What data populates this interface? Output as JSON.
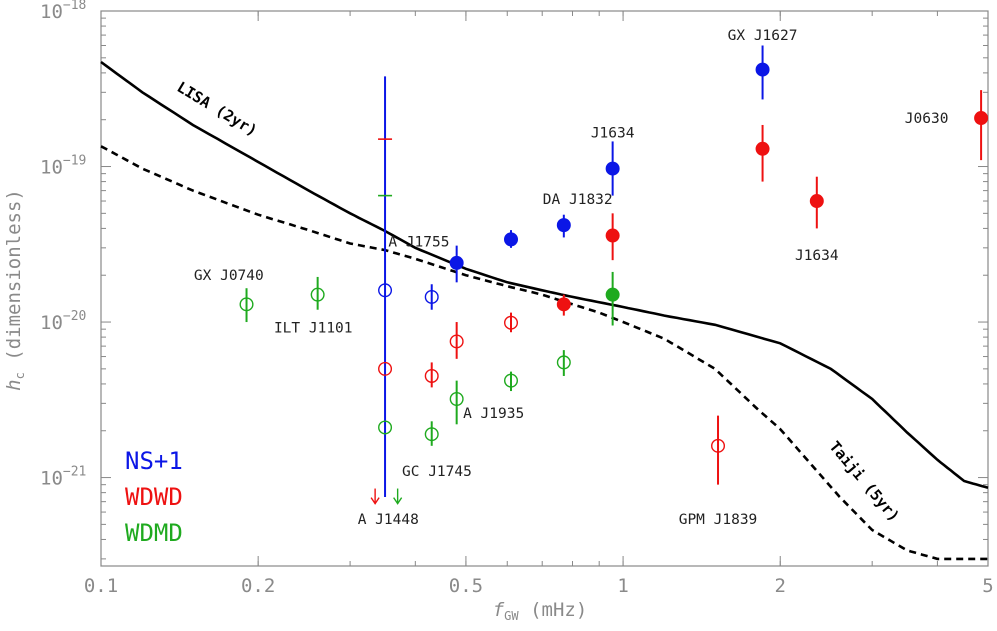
{
  "chart_data": {
    "type": "scatter",
    "xlabel": {
      "main": "f",
      "sub": "GW",
      "unit": " (mHz)"
    },
    "ylabel": {
      "main": "h",
      "sub": "c",
      "unit": " (dimensionless)"
    },
    "xscale": "log",
    "yscale": "log",
    "xlim": [
      0.1,
      5
    ],
    "ylim": [
      2.7e-22,
      1e-18
    ],
    "x_ticks": [
      {
        "value": 0.1,
        "label": "0.1"
      },
      {
        "value": 0.2,
        "label": "0.2"
      },
      {
        "value": 0.5,
        "label": "0.5"
      },
      {
        "value": 1,
        "label": "1"
      },
      {
        "value": 2,
        "label": "2"
      },
      {
        "value": 5,
        "label": "5"
      }
    ],
    "y_ticks": [
      {
        "value": 1e-21,
        "mant": "10",
        "exp": "−21"
      },
      {
        "value": 1e-20,
        "mant": "10",
        "exp": "−20"
      },
      {
        "value": 1e-19,
        "mant": "10",
        "exp": "−19"
      },
      {
        "value": 1e-18,
        "mant": "10",
        "exp": "−18"
      }
    ],
    "grid": false,
    "colors": {
      "NS+1": "#0b16e6",
      "WDWD": "#ee1111",
      "WDMD": "#1faa1f"
    },
    "curves": [
      {
        "name": "LISA (2yr)",
        "style": "solid",
        "points": [
          [
            0.1,
            4.7e-19
          ],
          [
            0.12,
            3e-19
          ],
          [
            0.15,
            1.85e-19
          ],
          [
            0.2,
            1.07e-19
          ],
          [
            0.25,
            7e-20
          ],
          [
            0.3,
            5e-20
          ],
          [
            0.35,
            3.85e-20
          ],
          [
            0.4,
            3e-20
          ],
          [
            0.5,
            2.2e-20
          ],
          [
            0.6,
            1.8e-20
          ],
          [
            0.7,
            1.6e-20
          ],
          [
            0.8,
            1.45e-20
          ],
          [
            1.0,
            1.25e-20
          ],
          [
            1.2,
            1.1e-20
          ],
          [
            1.5,
            9.6e-21
          ],
          [
            2.0,
            7.3e-21
          ],
          [
            2.5,
            5e-21
          ],
          [
            3.0,
            3.2e-21
          ],
          [
            3.5,
            1.95e-21
          ],
          [
            4.0,
            1.3e-21
          ],
          [
            4.5,
            9.5e-22
          ],
          [
            5.0,
            8.6e-22
          ]
        ]
      },
      {
        "name": "Taiji (5yr)",
        "style": "dashed",
        "points": [
          [
            0.1,
            1.35e-19
          ],
          [
            0.12,
            9.7e-20
          ],
          [
            0.15,
            7e-20
          ],
          [
            0.2,
            4.9e-20
          ],
          [
            0.25,
            3.9e-20
          ],
          [
            0.3,
            3.2e-20
          ],
          [
            0.35,
            2.9e-20
          ],
          [
            0.4,
            2.55e-20
          ],
          [
            0.5,
            2e-20
          ],
          [
            0.6,
            1.7e-20
          ],
          [
            0.7,
            1.5e-20
          ],
          [
            0.8,
            1.3e-20
          ],
          [
            0.9,
            1.15e-20
          ],
          [
            1.0,
            1e-20
          ],
          [
            1.2,
            7.8e-21
          ],
          [
            1.5,
            5e-21
          ],
          [
            1.8,
            2.8e-21
          ],
          [
            2.0,
            2.05e-21
          ],
          [
            2.3,
            1.2e-21
          ],
          [
            2.6,
            7.5e-22
          ],
          [
            3.0,
            4.6e-22
          ],
          [
            3.5,
            3.4e-22
          ],
          [
            4.0,
            3e-22
          ],
          [
            5.0,
            3e-22
          ]
        ]
      }
    ],
    "series": [
      {
        "name": "NS+1",
        "points": [
          {
            "x": 0.35,
            "y": 1.6e-20,
            "filled": false
          },
          {
            "x": 0.43,
            "y": 1.45e-20,
            "filled": false,
            "err": [
              1.2e-20,
              1.75e-20
            ]
          },
          {
            "x": 0.48,
            "y": 2.4e-20,
            "filled": true,
            "err": [
              1.8e-20,
              3.1e-20
            ]
          },
          {
            "x": 0.61,
            "y": 3.4e-20,
            "filled": true,
            "err": [
              3e-20,
              3.9e-20
            ]
          },
          {
            "x": 0.77,
            "y": 4.2e-20,
            "filled": true,
            "err": [
              3.5e-20,
              4.9e-20
            ]
          },
          {
            "x": 0.955,
            "y": 9.7e-20,
            "filled": true,
            "err": [
              6.5e-20,
              1.45e-19
            ]
          },
          {
            "x": 1.85,
            "y": 4.2e-19,
            "filled": true,
            "err": [
              2.7e-19,
              6e-19
            ]
          }
        ]
      },
      {
        "name": "WDWD",
        "points": [
          {
            "x": 0.35,
            "y": 5e-21,
            "filled": false
          },
          {
            "x": 0.43,
            "y": 4.5e-21,
            "filled": false,
            "err": [
              3.8e-21,
              5.5e-21
            ]
          },
          {
            "x": 0.48,
            "y": 7.5e-21,
            "filled": false,
            "err": [
              5.8e-21,
              1e-20
            ]
          },
          {
            "x": 0.61,
            "y": 9.9e-21,
            "filled": false,
            "err": [
              8.6e-21,
              1.15e-20
            ]
          },
          {
            "x": 0.77,
            "y": 1.3e-20,
            "filled": true,
            "err": [
              1.1e-20,
              1.5e-20
            ]
          },
          {
            "x": 0.955,
            "y": 3.6e-20,
            "filled": true,
            "err": [
              2.5e-20,
              5e-20
            ]
          },
          {
            "x": 1.52,
            "y": 1.6e-21,
            "filled": false,
            "err": [
              9e-22,
              2.5e-21
            ]
          },
          {
            "x": 1.85,
            "y": 1.3e-19,
            "filled": true,
            "err": [
              8e-20,
              1.85e-19
            ]
          },
          {
            "x": 2.35,
            "y": 6e-20,
            "filled": true,
            "err": [
              4e-20,
              8.6e-20
            ]
          },
          {
            "x": 4.85,
            "y": 2.05e-19,
            "filled": true,
            "err": [
              1.1e-19,
              3.1e-19
            ]
          }
        ]
      },
      {
        "name": "WDMD",
        "points": [
          {
            "x": 0.19,
            "y": 1.3e-20,
            "filled": false,
            "err": [
              1e-20,
              1.65e-20
            ]
          },
          {
            "x": 0.26,
            "y": 1.5e-20,
            "filled": false,
            "err": [
              1.2e-20,
              1.95e-20
            ]
          },
          {
            "x": 0.35,
            "y": 2.1e-21,
            "filled": false
          },
          {
            "x": 0.43,
            "y": 1.9e-21,
            "filled": false,
            "err": [
              1.6e-21,
              2.3e-21
            ]
          },
          {
            "x": 0.48,
            "y": 3.2e-21,
            "filled": false,
            "err": [
              2.2e-21,
              4.2e-21
            ]
          },
          {
            "x": 0.61,
            "y": 4.2e-21,
            "filled": false,
            "err": [
              3.6e-21,
              4.8e-21
            ]
          },
          {
            "x": 0.77,
            "y": 5.5e-21,
            "filled": false,
            "err": [
              4.5e-21,
              6.6e-21
            ]
          },
          {
            "x": 0.955,
            "y": 1.5e-20,
            "filled": true,
            "err": [
              9.5e-21,
              2.1e-20
            ]
          }
        ]
      }
    ],
    "special_lines": [
      {
        "x": 0.35,
        "y_top": 3.8e-19,
        "y_bottom": 7.5e-22,
        "color": "#0b16e6"
      },
      {
        "x": 0.35,
        "y": 1.5e-19,
        "color": "#ee1111"
      },
      {
        "x": 0.35,
        "y": 6.5e-20,
        "color": "#1faa1f"
      },
      {
        "x": 0.335,
        "y_top": 8.5e-22,
        "y_bottom": 6.8e-22,
        "color": "#ee1111",
        "arrow": true
      },
      {
        "x": 0.37,
        "y_top": 8.5e-22,
        "y_bottom": 6.8e-22,
        "color": "#1faa1f",
        "arrow": true
      }
    ],
    "point_labels": [
      {
        "text": "GX J1627",
        "x": 1.85,
        "y": 7e-19,
        "anchor": "middle"
      },
      {
        "text": "J0630",
        "x": 4.2,
        "y": 2.05e-19,
        "anchor": "end"
      },
      {
        "text": "J1634",
        "x": 0.955,
        "y": 1.65e-19,
        "anchor": "middle"
      },
      {
        "text": "DA J1832",
        "x": 0.955,
        "y": 6.2e-20,
        "anchor": "end"
      },
      {
        "text": "J1634",
        "x": 2.35,
        "y": 2.7e-20,
        "anchor": "middle"
      },
      {
        "text": "A J1755",
        "x": 0.465,
        "y": 3.3e-20,
        "anchor": "end"
      },
      {
        "text": "GX J0740",
        "x": 0.205,
        "y": 2e-20,
        "anchor": "end"
      },
      {
        "text": "ILT J1101",
        "x": 0.255,
        "y": 9.2e-21,
        "anchor": "middle"
      },
      {
        "text": "A J1935",
        "x": 0.565,
        "y": 2.6e-21,
        "anchor": "middle"
      },
      {
        "text": "GC J1745",
        "x": 0.44,
        "y": 1.1e-21,
        "anchor": "middle"
      },
      {
        "text": "A J1448",
        "x": 0.355,
        "y": 5.4e-22,
        "anchor": "middle"
      },
      {
        "text": "GPM J1839",
        "x": 1.52,
        "y": 5.4e-22,
        "anchor": "middle"
      }
    ],
    "curve_labels": [
      {
        "text": "LISA (2yr)",
        "x": 0.165,
        "y": 2.2e-19,
        "angle": 31
      },
      {
        "text": "Taiji (5yr)",
        "x": 2.85,
        "y": 9e-22,
        "angle": 50
      }
    ],
    "legend": {
      "placement": "bottom-left",
      "entries": [
        {
          "label": "NS+1",
          "color": "#0b16e6"
        },
        {
          "label": "WDWD",
          "color": "#ee1111"
        },
        {
          "label": "WDMD",
          "color": "#1faa1f"
        }
      ]
    }
  }
}
